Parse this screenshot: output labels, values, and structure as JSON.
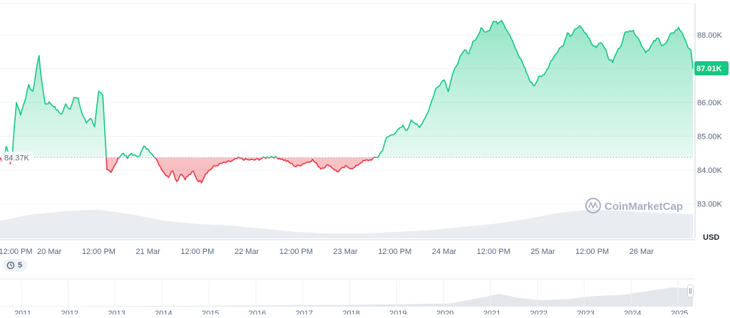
{
  "chart_data": {
    "type": "area",
    "currency_label": "USD",
    "watermark": "CoinMarketCap",
    "ylim": [
      82800,
      88800
    ],
    "y_ticks": [
      83000,
      84000,
      85000,
      86000,
      87000,
      88000
    ],
    "y_tick_labels": [
      "83.00K",
      "84.00K",
      "85.00K",
      "86.00K",
      "87.00K",
      "88.00K"
    ],
    "baseline_value": 84370,
    "baseline_label": "84.37K",
    "current_value": 87010,
    "current_label": "87.01K",
    "x_range_hours": [
      0,
      168.5
    ],
    "x_tick_hours": [
      12,
      24,
      36,
      48,
      60,
      72,
      84,
      96,
      108,
      120,
      132,
      144,
      156
    ],
    "x_tick_labels": [
      "12:00 PM",
      "20 Mar",
      "12:00 PM",
      "21 Mar",
      "12:00 PM",
      "22 Mar",
      "12:00 PM",
      "23 Mar",
      "12:00 PM",
      "24 Mar",
      "12:00 PM",
      "25 Mar",
      "12:00 PM",
      "26 Mar"
    ],
    "x_tick_labels_all_hours": [
      0,
      12,
      24,
      36,
      48,
      60,
      72,
      84,
      96,
      108,
      120,
      132,
      144,
      156
    ],
    "series": [
      {
        "points": [
          [
            0,
            84370
          ],
          [
            0.5,
            84250
          ],
          [
            1,
            84390
          ],
          [
            1.5,
            84700
          ],
          [
            2,
            84550
          ],
          [
            2.5,
            84180
          ],
          [
            3,
            84400
          ],
          [
            3.5,
            85300
          ],
          [
            4,
            86000
          ],
          [
            5,
            85650
          ],
          [
            6,
            86050
          ],
          [
            7,
            86500
          ],
          [
            8,
            86300
          ],
          [
            9,
            87100
          ],
          [
            9.5,
            87400
          ],
          [
            10,
            86750
          ],
          [
            11,
            85950
          ],
          [
            12,
            86000
          ],
          [
            13,
            85900
          ],
          [
            14,
            85750
          ],
          [
            15,
            85650
          ],
          [
            16,
            85950
          ],
          [
            17,
            85800
          ],
          [
            18,
            86150
          ],
          [
            19,
            86100
          ],
          [
            20,
            85650
          ],
          [
            21,
            85400
          ],
          [
            22,
            85550
          ],
          [
            23,
            85300
          ],
          [
            24,
            86300
          ],
          [
            25,
            86200
          ],
          [
            26,
            84050
          ],
          [
            27,
            83950
          ],
          [
            28,
            84150
          ],
          [
            29,
            84400
          ],
          [
            30,
            84500
          ],
          [
            31,
            84350
          ],
          [
            32,
            84500
          ],
          [
            33,
            84400
          ],
          [
            34,
            84450
          ],
          [
            35,
            84700
          ],
          [
            36,
            84600
          ],
          [
            37,
            84500
          ],
          [
            38,
            84300
          ],
          [
            39,
            84100
          ],
          [
            40,
            83900
          ],
          [
            41,
            83800
          ],
          [
            42,
            84000
          ],
          [
            43,
            83650
          ],
          [
            44,
            83900
          ],
          [
            45,
            83750
          ],
          [
            46,
            83850
          ],
          [
            47,
            83950
          ],
          [
            48,
            83700
          ],
          [
            49,
            83650
          ],
          [
            50,
            83900
          ],
          [
            52,
            84100
          ],
          [
            54,
            84200
          ],
          [
            56,
            84250
          ],
          [
            58,
            84350
          ],
          [
            60,
            84300
          ],
          [
            62,
            84300
          ],
          [
            64,
            84350
          ],
          [
            66,
            84400
          ],
          [
            68,
            84350
          ],
          [
            70,
            84250
          ],
          [
            72,
            84100
          ],
          [
            74,
            84200
          ],
          [
            76,
            84300
          ],
          [
            78,
            84050
          ],
          [
            80,
            84150
          ],
          [
            82,
            83950
          ],
          [
            84,
            84100
          ],
          [
            86,
            84050
          ],
          [
            88,
            84250
          ],
          [
            90,
            84300
          ],
          [
            92,
            84400
          ],
          [
            93,
            84600
          ],
          [
            94,
            84950
          ],
          [
            96,
            85100
          ],
          [
            98,
            85300
          ],
          [
            99,
            85150
          ],
          [
            100,
            85500
          ],
          [
            102,
            85250
          ],
          [
            104,
            85700
          ],
          [
            106,
            86400
          ],
          [
            108,
            86700
          ],
          [
            109,
            86350
          ],
          [
            110,
            86800
          ],
          [
            111,
            87100
          ],
          [
            112,
            87350
          ],
          [
            113,
            87550
          ],
          [
            114,
            87450
          ],
          [
            115,
            87800
          ],
          [
            116,
            87900
          ],
          [
            117,
            88200
          ],
          [
            118,
            88100
          ],
          [
            119,
            88150
          ],
          [
            120,
            88400
          ],
          [
            121,
            88350
          ],
          [
            122,
            88450
          ],
          [
            123,
            88200
          ],
          [
            124,
            88000
          ],
          [
            125,
            87700
          ],
          [
            126,
            87400
          ],
          [
            127,
            87200
          ],
          [
            128,
            86900
          ],
          [
            129,
            86600
          ],
          [
            130,
            86500
          ],
          [
            131,
            86750
          ],
          [
            132,
            86800
          ],
          [
            133,
            86950
          ],
          [
            134,
            87250
          ],
          [
            135,
            87400
          ],
          [
            136,
            87600
          ],
          [
            137,
            87700
          ],
          [
            138,
            88050
          ],
          [
            139,
            87950
          ],
          [
            140,
            88200
          ],
          [
            141,
            88250
          ],
          [
            142,
            88100
          ],
          [
            143,
            87950
          ],
          [
            144,
            87700
          ],
          [
            145,
            87650
          ],
          [
            146,
            87800
          ],
          [
            147,
            87650
          ],
          [
            148,
            87300
          ],
          [
            149,
            87200
          ],
          [
            150,
            87500
          ],
          [
            151,
            87700
          ],
          [
            152,
            88050
          ],
          [
            153,
            88150
          ],
          [
            154,
            88100
          ],
          [
            155,
            87950
          ],
          [
            156,
            87700
          ],
          [
            157,
            87500
          ],
          [
            158,
            87600
          ],
          [
            159,
            87800
          ],
          [
            160,
            87900
          ],
          [
            161,
            87700
          ],
          [
            162,
            87750
          ],
          [
            163,
            88000
          ],
          [
            164,
            88100
          ],
          [
            165,
            88200
          ],
          [
            166,
            88050
          ],
          [
            167,
            87700
          ],
          [
            168,
            87550
          ],
          [
            168.5,
            87010
          ]
        ]
      }
    ],
    "volume_profile": [
      [
        0,
        0.55
      ],
      [
        8,
        0.75
      ],
      [
        16,
        0.85
      ],
      [
        24,
        0.9
      ],
      [
        32,
        0.75
      ],
      [
        40,
        0.55
      ],
      [
        48,
        0.45
      ],
      [
        56,
        0.4
      ],
      [
        64,
        0.3
      ],
      [
        72,
        0.2
      ],
      [
        80,
        0.15
      ],
      [
        88,
        0.15
      ],
      [
        96,
        0.2
      ],
      [
        104,
        0.25
      ],
      [
        112,
        0.35
      ],
      [
        120,
        0.45
      ],
      [
        128,
        0.6
      ],
      [
        136,
        0.8
      ],
      [
        144,
        0.9
      ],
      [
        152,
        0.85
      ],
      [
        160,
        0.8
      ],
      [
        168.5,
        0.75
      ]
    ],
    "history_badge": "5",
    "navigator_labels": [
      "2011",
      "2012",
      "2013",
      "2014",
      "2015",
      "2016",
      "2017",
      "2018",
      "2019",
      "2020",
      "2021",
      "2022",
      "2023",
      "2024",
      "2025"
    ],
    "navigator_profile": [
      [
        0,
        0.02
      ],
      [
        0.1,
        0.02
      ],
      [
        0.2,
        0.03
      ],
      [
        0.3,
        0.04
      ],
      [
        0.4,
        0.06
      ],
      [
        0.5,
        0.08
      ],
      [
        0.6,
        0.12
      ],
      [
        0.65,
        0.15
      ],
      [
        0.7,
        0.45
      ],
      [
        0.72,
        0.6
      ],
      [
        0.75,
        0.4
      ],
      [
        0.78,
        0.3
      ],
      [
        0.82,
        0.35
      ],
      [
        0.86,
        0.5
      ],
      [
        0.9,
        0.55
      ],
      [
        0.94,
        0.75
      ],
      [
        0.97,
        0.9
      ],
      [
        1.0,
        0.85
      ]
    ],
    "colors": {
      "up": "#16c784",
      "down": "#ea3943",
      "grid": "#eff2f5",
      "axis_text": "#58667e",
      "volume": "#e9ecf1",
      "navigator": "#e3e6eb",
      "watermark": "#a6b0c3"
    },
    "grid": true
  }
}
